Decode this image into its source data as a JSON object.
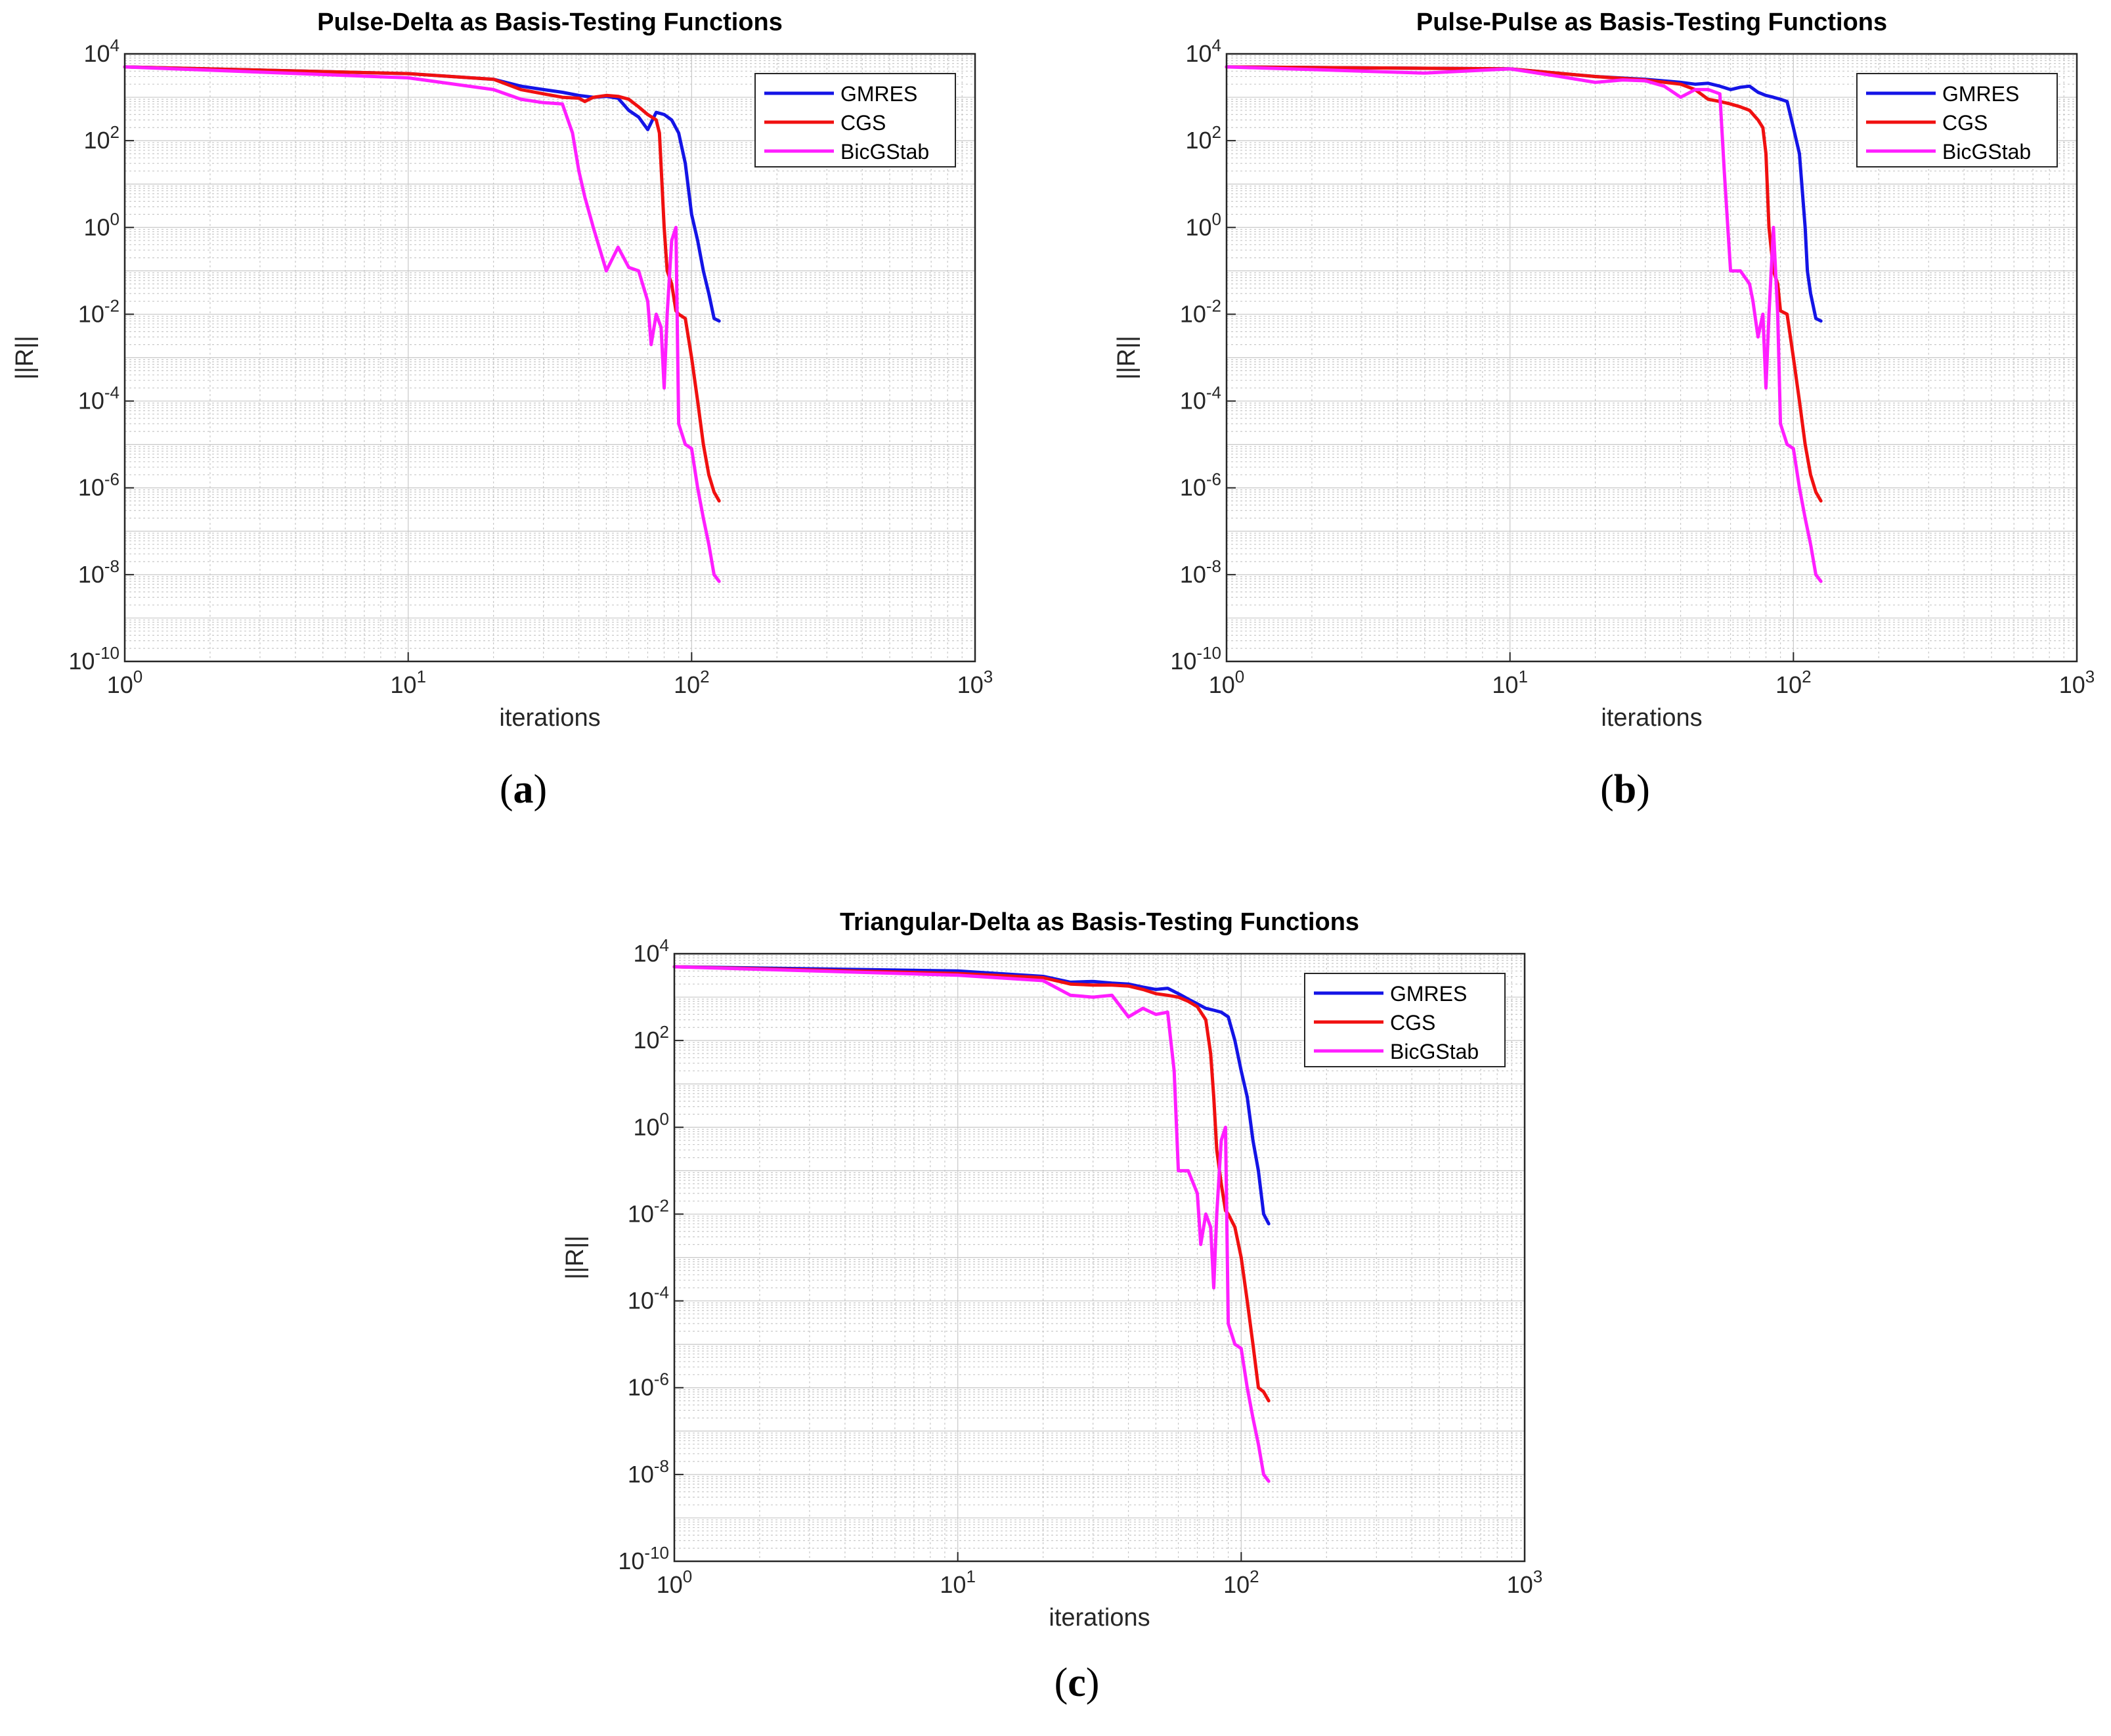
{
  "colors": {
    "gmres": "#1414e6",
    "cgs": "#f01010",
    "bicgstab": "#ff1eff",
    "grid": "#c8c8c8",
    "axis": "#262626"
  },
  "chart_data": [
    {
      "type": "line",
      "panel_label": "(a)",
      "title": "Pulse-Delta as Basis-Testing Functions",
      "xlabel": "iterations",
      "ylabel": "||R||",
      "xscale": "log",
      "yscale": "log",
      "xlim": [
        1,
        1000
      ],
      "ylim": [
        1e-10,
        10000
      ],
      "x_tick_labels": [
        "10^0",
        "10^1",
        "10^2",
        "10^3"
      ],
      "y_tick_labels": [
        "10^4",
        "10^2",
        "10^0",
        "10^-2",
        "10^-4",
        "10^-6",
        "10^-8",
        "10^-10"
      ],
      "grid": true,
      "legend_position": "top-right",
      "series": [
        {
          "name": "GMRES",
          "color_key": "gmres",
          "x": [
            1,
            10,
            20,
            25,
            30,
            35,
            40,
            45,
            50,
            55,
            60,
            65,
            70,
            75,
            80,
            85,
            90,
            95,
            100,
            105,
            110,
            115,
            120,
            125
          ],
          "y": [
            5000,
            3500,
            2600,
            1800,
            1500,
            1300,
            1100,
            1000,
            1050,
            950,
            500,
            350,
            180,
            450,
            400,
            300,
            150,
            30,
            2,
            0.5,
            0.1,
            0.03,
            0.008,
            0.007
          ]
        },
        {
          "name": "CGS",
          "color_key": "cgs",
          "x": [
            1,
            10,
            20,
            25,
            30,
            35,
            40,
            42,
            45,
            50,
            55,
            60,
            65,
            70,
            75,
            77,
            80,
            82,
            85,
            88,
            90,
            95,
            100,
            105,
            110,
            115,
            120,
            125
          ],
          "y": [
            5000,
            3500,
            2600,
            1500,
            1200,
            1000,
            950,
            800,
            1000,
            1100,
            1050,
            900,
            600,
            400,
            300,
            150,
            1,
            0.1,
            0.05,
            0.012,
            0.01,
            0.008,
            0.001,
            0.0001,
            1e-05,
            2e-06,
            8e-07,
            5e-07
          ]
        },
        {
          "name": "BicGStab",
          "color_key": "bicgstab",
          "x": [
            1,
            10,
            20,
            25,
            30,
            35,
            38,
            40,
            42,
            45,
            50,
            55,
            60,
            65,
            70,
            72,
            75,
            78,
            80,
            82,
            85,
            88,
            90,
            95,
            100,
            105,
            110,
            115,
            120,
            125
          ],
          "y": [
            5000,
            2800,
            1500,
            900,
            750,
            700,
            150,
            20,
            5,
            1,
            0.1,
            0.35,
            0.12,
            0.1,
            0.02,
            0.002,
            0.01,
            0.005,
            0.0002,
            0.01,
            0.5,
            1,
            3e-05,
            1e-05,
            8e-06,
            1e-06,
            2e-07,
            5e-08,
            1e-08,
            7e-09
          ]
        }
      ]
    },
    {
      "type": "line",
      "panel_label": "(b)",
      "title": "Pulse-Pulse as Basis-Testing Functions",
      "xlabel": "iterations",
      "ylabel": "||R||",
      "xscale": "log",
      "yscale": "log",
      "xlim": [
        1,
        1000
      ],
      "ylim": [
        1e-10,
        10000
      ],
      "x_tick_labels": [
        "10^0",
        "10^1",
        "10^2",
        "10^3"
      ],
      "y_tick_labels": [
        "10^4",
        "10^2",
        "10^0",
        "10^-2",
        "10^-4",
        "10^-6",
        "10^-8",
        "10^-10"
      ],
      "grid": true,
      "legend_position": "top-right",
      "series": [
        {
          "name": "GMRES",
          "color_key": "gmres",
          "x": [
            1,
            10,
            20,
            30,
            40,
            45,
            50,
            55,
            60,
            65,
            70,
            75,
            80,
            85,
            90,
            95,
            100,
            105,
            110,
            112,
            115,
            120,
            125
          ],
          "y": [
            5000,
            4500,
            3000,
            2600,
            2200,
            2000,
            2100,
            1800,
            1500,
            1700,
            1800,
            1300,
            1100,
            1000,
            900,
            800,
            200,
            50,
            1,
            0.1,
            0.03,
            0.008,
            0.007
          ]
        },
        {
          "name": "CGS",
          "color_key": "cgs",
          "x": [
            1,
            10,
            20,
            30,
            40,
            45,
            50,
            55,
            60,
            65,
            70,
            75,
            78,
            80,
            82,
            85,
            88,
            90,
            95,
            100,
            105,
            110,
            115,
            120,
            125
          ],
          "y": [
            5000,
            4500,
            3000,
            2500,
            2000,
            1500,
            900,
            800,
            700,
            600,
            500,
            300,
            200,
            50,
            1,
            0.1,
            0.05,
            0.012,
            0.01,
            0.001,
            0.0001,
            1e-05,
            2e-06,
            8e-07,
            5e-07
          ]
        },
        {
          "name": "BicGStab",
          "color_key": "bicgstab",
          "x": [
            1,
            5,
            10,
            15,
            20,
            25,
            30,
            35,
            40,
            45,
            50,
            55,
            57,
            60,
            62,
            65,
            70,
            72,
            75,
            78,
            80,
            82,
            85,
            88,
            90,
            95,
            100,
            105,
            110,
            115,
            120,
            125
          ],
          "y": [
            5000,
            3600,
            4500,
            3000,
            2200,
            2500,
            2400,
            1800,
            1000,
            1500,
            1500,
            1200,
            20,
            0.1,
            0.1,
            0.1,
            0.05,
            0.02,
            0.003,
            0.01,
            0.0002,
            0.01,
            1,
            0.01,
            3e-05,
            1e-05,
            8e-06,
            1e-06,
            2e-07,
            5e-08,
            1e-08,
            7e-09
          ]
        }
      ]
    },
    {
      "type": "line",
      "panel_label": "(c)",
      "title": "Triangular-Delta as Basis-Testing Functions",
      "xlabel": "iterations",
      "ylabel": "||R||",
      "xscale": "log",
      "yscale": "log",
      "xlim": [
        1,
        1000
      ],
      "ylim": [
        1e-10,
        10000
      ],
      "x_tick_labels": [
        "10^0",
        "10^1",
        "10^2",
        "10^3"
      ],
      "y_tick_labels": [
        "10^4",
        "10^2",
        "10^0",
        "10^-2",
        "10^-4",
        "10^-6",
        "10^-8",
        "10^-10"
      ],
      "grid": true,
      "legend_position": "top-right",
      "series": [
        {
          "name": "GMRES",
          "color_key": "gmres",
          "x": [
            1,
            10,
            20,
            25,
            30,
            35,
            40,
            45,
            50,
            55,
            60,
            65,
            70,
            75,
            80,
            85,
            90,
            95,
            100,
            105,
            110,
            115,
            120,
            125
          ],
          "y": [
            5000,
            4000,
            3000,
            2200,
            2300,
            2100,
            2000,
            1700,
            1500,
            1600,
            1200,
            900,
            700,
            550,
            500,
            450,
            350,
            100,
            20,
            5,
            0.5,
            0.1,
            0.01,
            0.006
          ]
        },
        {
          "name": "CGS",
          "color_key": "cgs",
          "x": [
            1,
            10,
            20,
            25,
            30,
            35,
            40,
            45,
            50,
            55,
            60,
            65,
            70,
            75,
            78,
            80,
            82,
            85,
            88,
            90,
            95,
            100,
            105,
            110,
            115,
            120,
            125
          ],
          "y": [
            5000,
            3500,
            2800,
            2000,
            1900,
            1900,
            1800,
            1500,
            1200,
            1100,
            1000,
            800,
            600,
            300,
            50,
            5,
            0.3,
            0.05,
            0.012,
            0.01,
            0.005,
            0.001,
            0.0001,
            1e-05,
            1e-06,
            8e-07,
            5e-07
          ]
        },
        {
          "name": "BicGStab",
          "color_key": "bicgstab",
          "x": [
            1,
            10,
            20,
            25,
            30,
            35,
            40,
            45,
            50,
            55,
            58,
            60,
            62,
            65,
            70,
            72,
            75,
            78,
            80,
            82,
            85,
            88,
            90,
            95,
            100,
            105,
            110,
            115,
            120,
            125
          ],
          "y": [
            5000,
            3200,
            2400,
            1100,
            1000,
            1100,
            350,
            550,
            400,
            450,
            20,
            0.1,
            0.1,
            0.1,
            0.03,
            0.002,
            0.01,
            0.005,
            0.0002,
            0.01,
            0.5,
            1,
            3e-05,
            1e-05,
            8e-06,
            1e-06,
            2e-07,
            5e-08,
            1e-08,
            7e-09
          ]
        }
      ]
    }
  ]
}
